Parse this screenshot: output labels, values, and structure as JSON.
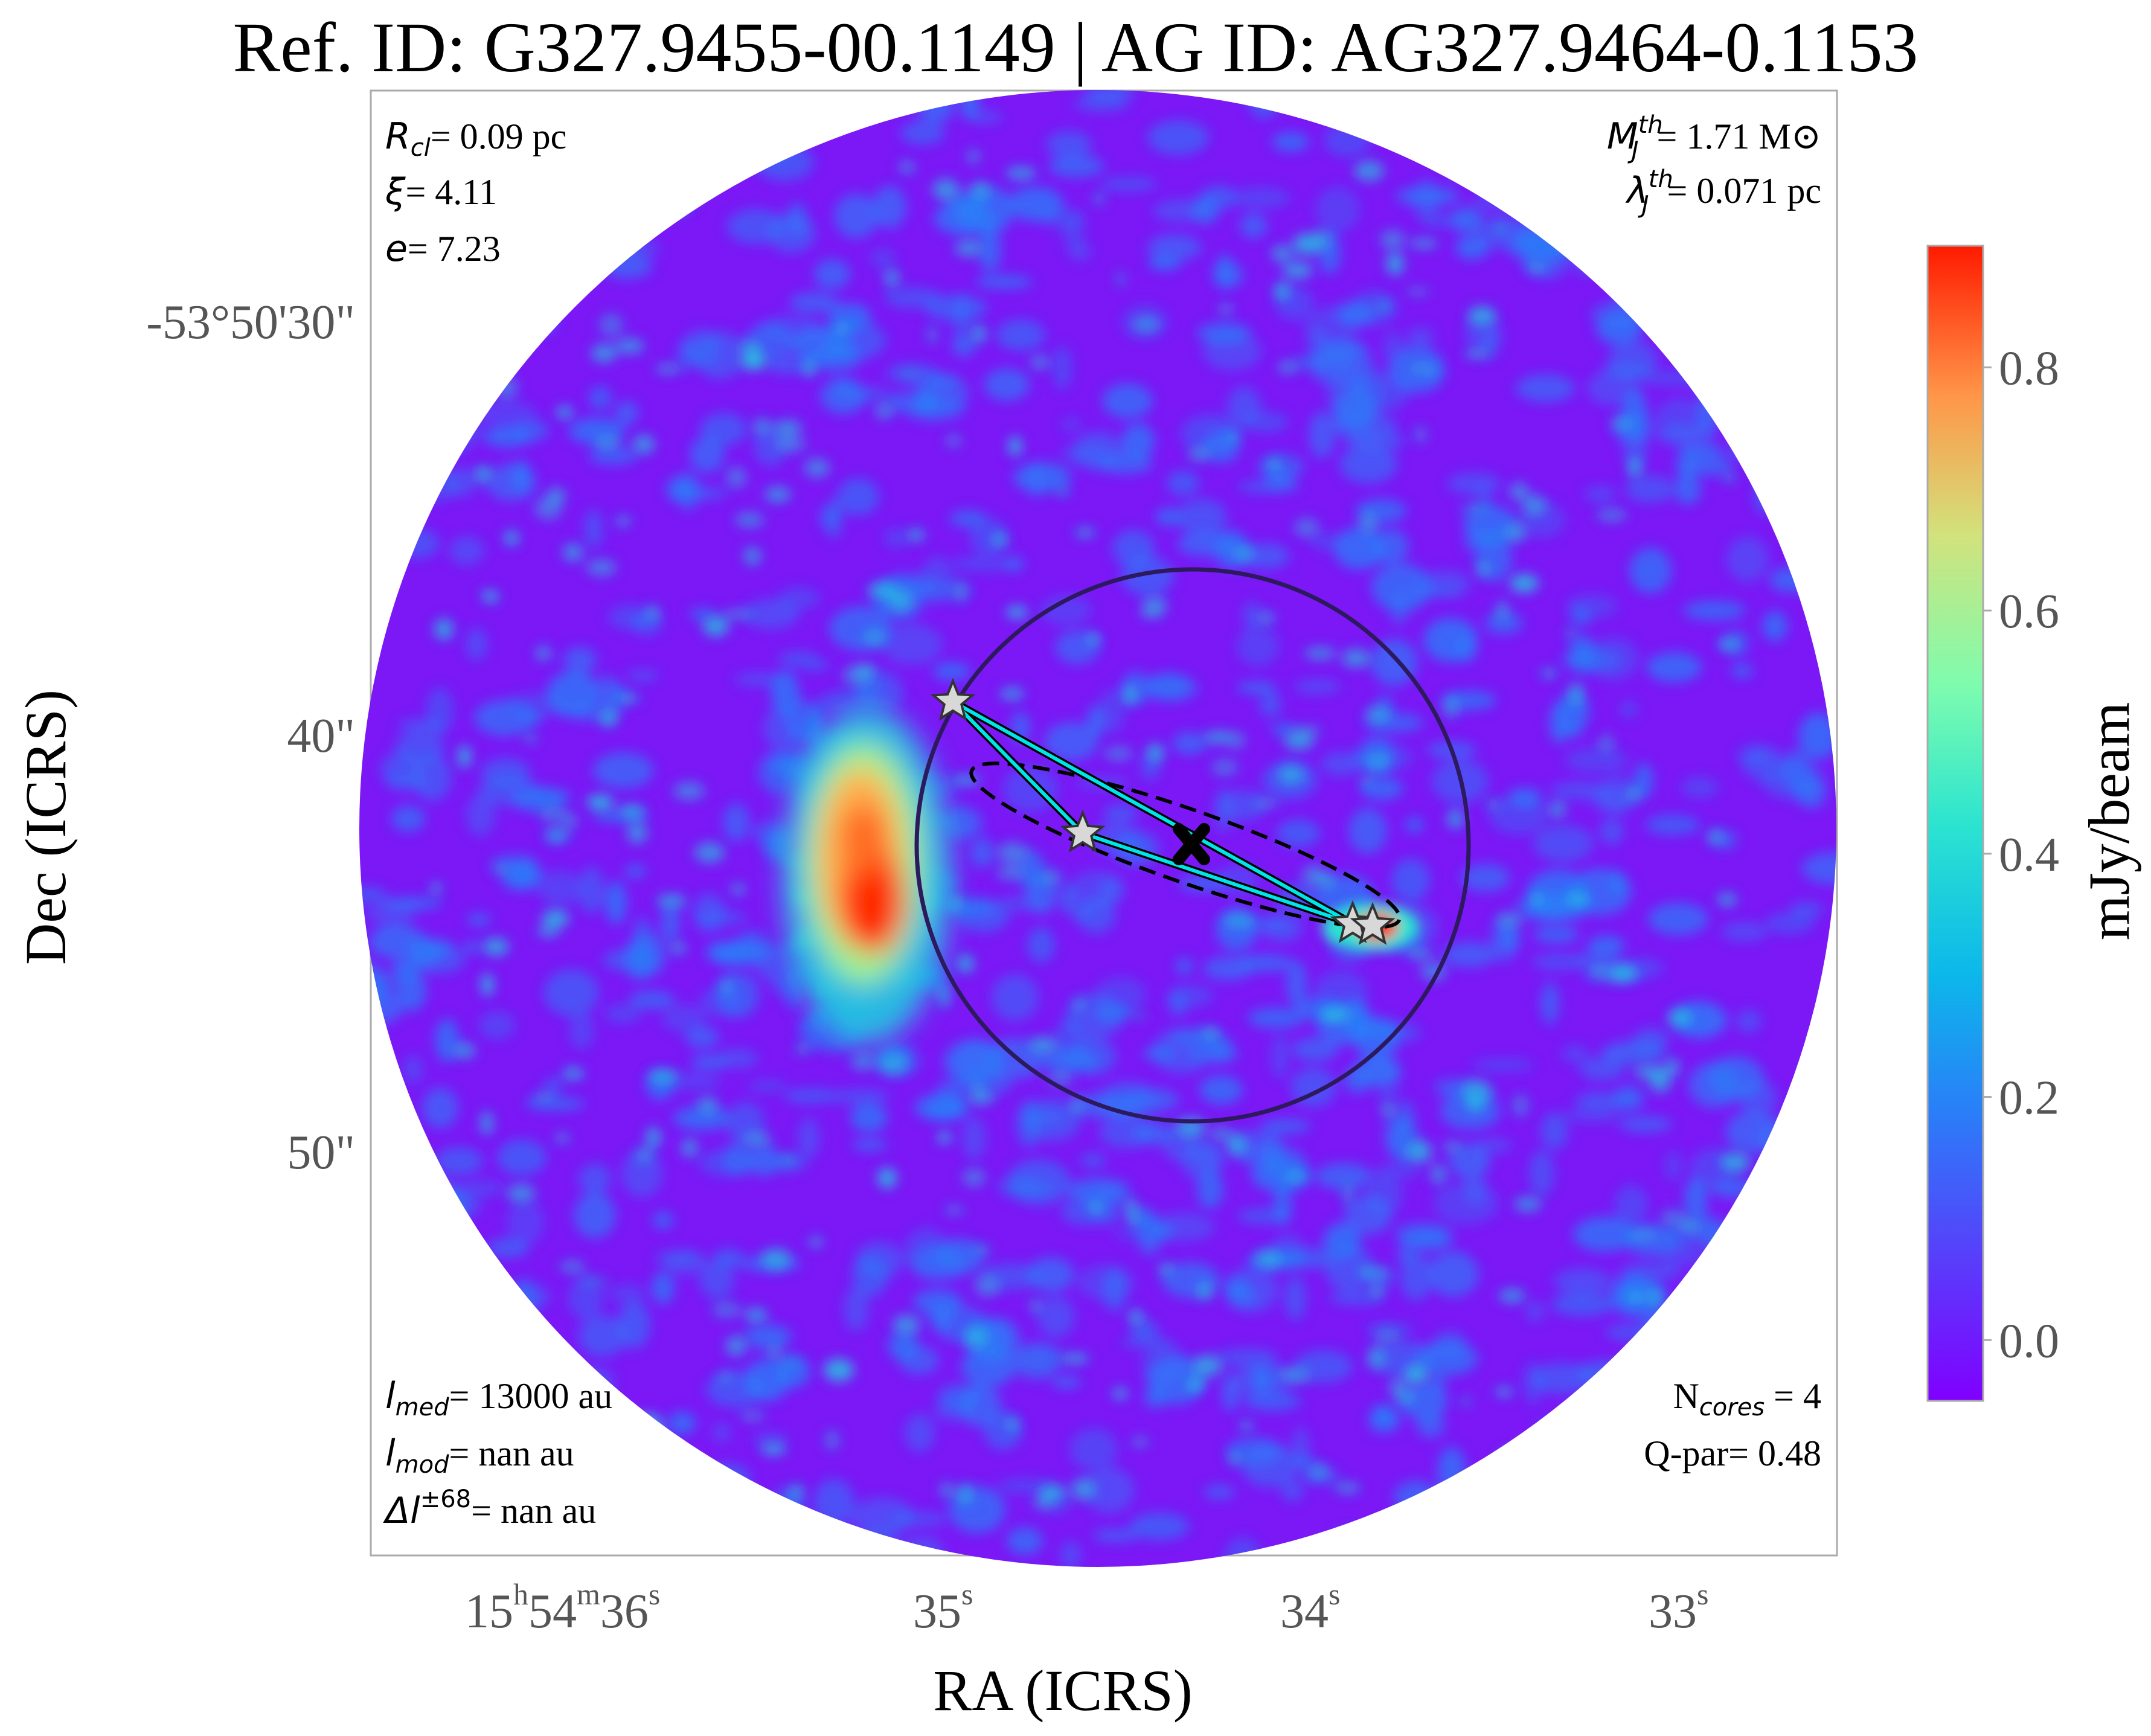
{
  "title": "Ref. ID: G327.9455-00.1149 | AG ID: AG327.9464-0.1153",
  "axes": {
    "xlabel": "RA (ICRS)",
    "ylabel": "Dec (ICRS)",
    "x_ticks": [
      {
        "h": "15",
        "m": "54",
        "s": "36",
        "label": "15h54m36s"
      },
      {
        "s": "35",
        "label": "35s"
      },
      {
        "s": "34",
        "label": "34s"
      },
      {
        "s": "33",
        "label": "33s"
      }
    ],
    "y_ticks": [
      "-53°50'30\"",
      "40\"",
      "50\""
    ]
  },
  "colorbar": {
    "label": "mJy/beam",
    "ticks": [
      "0.0",
      "0.2",
      "0.4",
      "0.6",
      "0.8"
    ],
    "range": [
      -0.05,
      0.9
    ],
    "colormap": "rainbow"
  },
  "annotations": {
    "top_left": {
      "r_cl": {
        "sym": "R",
        "sub": "cl",
        "value": "= 0.09 pc"
      },
      "xi": {
        "sym": "ξ",
        "value": "= 4.11"
      },
      "e": {
        "sym": "e",
        "value": "= 7.23"
      }
    },
    "top_right": {
      "mj": {
        "sym": "M",
        "sub": "J",
        "sup": "th",
        "value": "= 1.71 M⊙"
      },
      "lambda": {
        "sym": "λ",
        "sub": "J",
        "sup": "th",
        "value": "= 0.071 pc"
      }
    },
    "bottom_left": {
      "l_med": {
        "sym": "l",
        "sub": "med",
        "value": "= 13000 au"
      },
      "l_mod": {
        "sym": "l",
        "sub": "mod",
        "value": "= nan au"
      },
      "delta_l": {
        "sym": "Δl",
        "sup": "±68",
        "value": "= nan au"
      }
    },
    "bottom_right": {
      "ncores": {
        "sym": "N",
        "sub": "cores",
        "value": " = 4"
      },
      "qpar": {
        "text": "Q-par= 0.48"
      }
    }
  },
  "colors": {
    "background_map": "#7b18f5",
    "emission_blue": "#2a7ef8",
    "emission_cyan": "#1ecbe0",
    "emission_peak": "#ff2000",
    "circle": "#2d1a5e",
    "mst_line": "#00e5e8",
    "ellipse": "#000000",
    "star_fill": "#d8d8d8"
  },
  "markers": {
    "cores": 4,
    "centroid": "x-marker"
  }
}
